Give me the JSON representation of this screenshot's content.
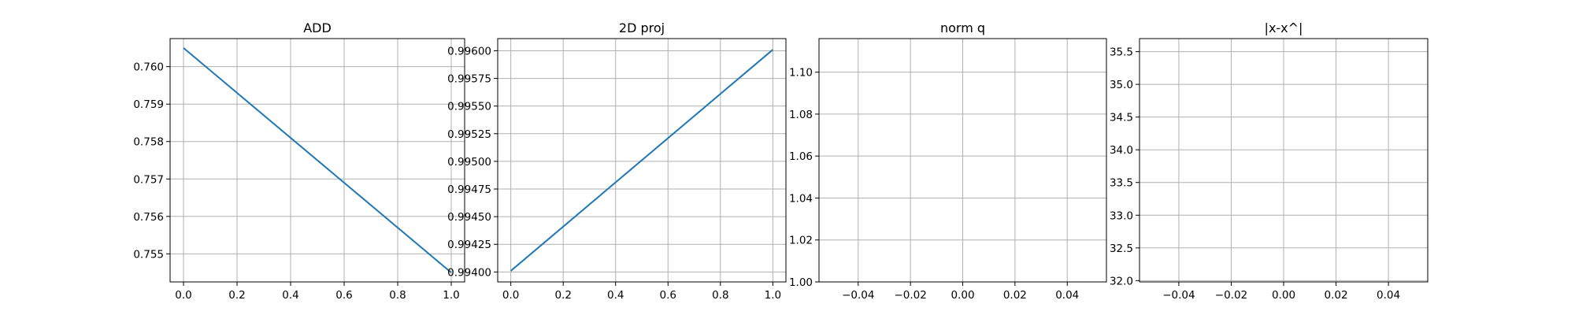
{
  "chart_data": [
    {
      "type": "line",
      "title": "ADD",
      "xlabel": "",
      "ylabel": "",
      "xlim": [
        -0.05,
        1.05
      ],
      "ylim": [
        0.75425,
        0.76075
      ],
      "xticks": [
        0.0,
        0.2,
        0.4,
        0.6,
        0.8,
        1.0
      ],
      "xtick_labels": [
        "0.0",
        "0.2",
        "0.4",
        "0.6",
        "0.8",
        "1.0"
      ],
      "yticks": [
        0.755,
        0.756,
        0.757,
        0.758,
        0.759,
        0.76
      ],
      "ytick_labels": [
        "0.755",
        "0.756",
        "0.757",
        "0.758",
        "0.759",
        "0.760"
      ],
      "grid": true,
      "series": [
        {
          "x": [
            0.0,
            1.0
          ],
          "y": [
            0.7605,
            0.7545
          ],
          "color": "#1f77b4"
        }
      ]
    },
    {
      "type": "line",
      "title": "2D proj",
      "xlabel": "",
      "ylabel": "",
      "xlim": [
        -0.05,
        1.05
      ],
      "ylim": [
        0.99391,
        0.99611
      ],
      "xticks": [
        0.0,
        0.2,
        0.4,
        0.6,
        0.8,
        1.0
      ],
      "xtick_labels": [
        "0.0",
        "0.2",
        "0.4",
        "0.6",
        "0.8",
        "1.0"
      ],
      "yticks": [
        0.994,
        0.99425,
        0.9945,
        0.99475,
        0.995,
        0.99525,
        0.9955,
        0.99575,
        0.996
      ],
      "ytick_labels": [
        "0.99400",
        "0.99425",
        "0.99450",
        "0.99475",
        "0.99500",
        "0.99525",
        "0.99550",
        "0.99575",
        "0.99600"
      ],
      "grid": true,
      "series": [
        {
          "x": [
            0.0,
            1.0
          ],
          "y": [
            0.99401,
            0.99601
          ],
          "color": "#1f77b4"
        }
      ]
    },
    {
      "type": "line",
      "title": "norm q",
      "xlabel": "",
      "ylabel": "",
      "xlim": [
        -0.055,
        0.055
      ],
      "ylim": [
        1.0,
        1.116
      ],
      "xticks": [
        -0.04,
        -0.02,
        0.0,
        0.02,
        0.04
      ],
      "xtick_labels": [
        "−0.04",
        "−0.02",
        "0.00",
        "0.02",
        "0.04"
      ],
      "yticks": [
        1.0,
        1.02,
        1.04,
        1.06,
        1.08,
        1.1
      ],
      "ytick_labels": [
        "1.00",
        "1.02",
        "1.04",
        "1.06",
        "1.08",
        "1.10"
      ],
      "grid": true,
      "series": []
    },
    {
      "type": "line",
      "title": "|x-x^|",
      "xlabel": "",
      "ylabel": "",
      "xlim": [
        -0.055,
        0.055
      ],
      "ylim": [
        31.98,
        35.7
      ],
      "xticks": [
        -0.04,
        -0.02,
        0.0,
        0.02,
        0.04
      ],
      "xtick_labels": [
        "−0.04",
        "−0.02",
        "0.00",
        "0.02",
        "0.04"
      ],
      "yticks": [
        32.0,
        32.5,
        33.0,
        33.5,
        34.0,
        34.5,
        35.0,
        35.5
      ],
      "ytick_labels": [
        "32.0",
        "32.5",
        "33.0",
        "33.5",
        "34.0",
        "34.5",
        "35.0",
        "35.5"
      ],
      "grid": true,
      "series": []
    }
  ]
}
